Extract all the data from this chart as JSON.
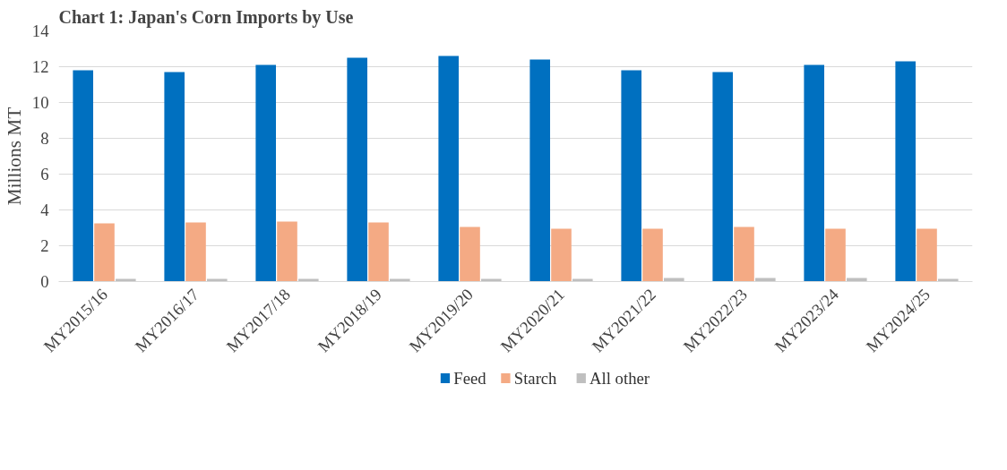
{
  "chart_data": {
    "type": "bar",
    "title": "Chart 1: Japan's Corn Imports by Use",
    "ylabel": "Millions MT",
    "categories": [
      "MY2015/16",
      "MY2016/17",
      "MY2017/18",
      "MY2018/19",
      "MY2019/20",
      "MY2020/21",
      "MY2021/22",
      "MY2022/23",
      "MY2023/24",
      "MY2024/25"
    ],
    "series": [
      {
        "name": "Feed",
        "color": "#0070c0",
        "values": [
          11.8,
          11.7,
          12.1,
          12.5,
          12.6,
          12.4,
          11.8,
          11.7,
          12.1,
          12.3
        ]
      },
      {
        "name": "Starch",
        "color": "#f4aa84",
        "values": [
          3.25,
          3.3,
          3.35,
          3.3,
          3.05,
          2.95,
          2.95,
          3.05,
          2.95,
          2.95
        ]
      },
      {
        "name": "All other",
        "color": "#bfbfbf",
        "values": [
          0.15,
          0.15,
          0.15,
          0.15,
          0.15,
          0.15,
          0.2,
          0.2,
          0.2,
          0.15
        ]
      }
    ],
    "ylim": [
      0,
      14
    ],
    "yticks": [
      0,
      2,
      4,
      6,
      8,
      10,
      12,
      14
    ],
    "grid": "y",
    "legend": "bottom"
  }
}
